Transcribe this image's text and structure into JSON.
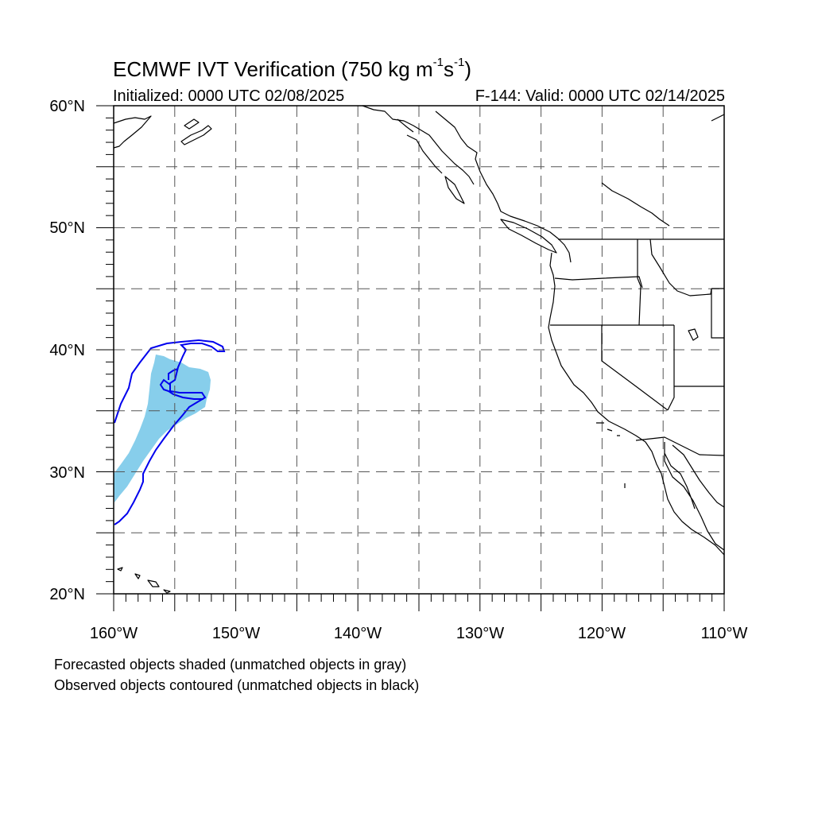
{
  "header": {
    "title_prefix": "ECMWF IVT Verification (750 kg m",
    "title_sup1": "-1",
    "title_mid": "s",
    "title_sup2": "-1",
    "title_suffix": ")",
    "initialized": "Initialized: 0000 UTC 02/08/2025",
    "valid": "F-144: Valid: 0000 UTC 02/14/2025"
  },
  "axes": {
    "lat_labels": [
      "60°N",
      "50°N",
      "40°N",
      "30°N",
      "20°N"
    ],
    "lon_labels": [
      "160°W",
      "150°W",
      "140°W",
      "130°W",
      "120°W",
      "110°W"
    ],
    "lat_range": [
      20,
      60
    ],
    "lon_range": [
      -160,
      -110
    ]
  },
  "legend": {
    "line1": "Forecasted objects shaded (unmatched objects in gray)",
    "line2": "Observed objects contoured (unmatched objects in black)"
  },
  "colors": {
    "forecast_fill": "#87ceeb",
    "observed_contour": "#0000ee",
    "coastline": "#000000",
    "grid": "#555555"
  }
}
